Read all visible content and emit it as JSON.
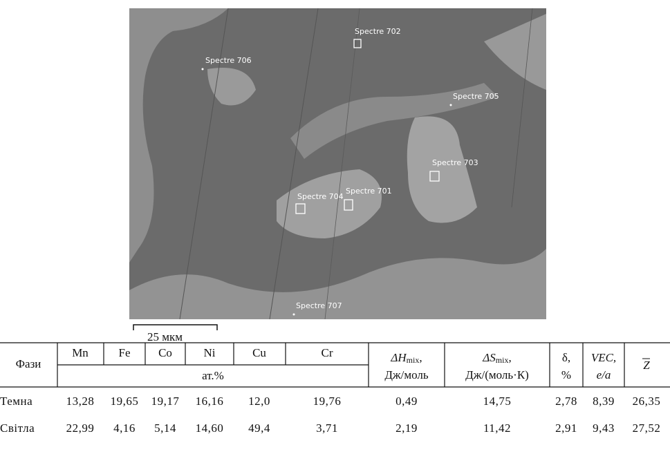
{
  "image": {
    "labels": [
      "Spectre 702",
      "Spectre 706",
      "Spectre 705",
      "Spectre 703",
      "Spectre 704",
      "Spectre 701",
      "Spectre 707"
    ],
    "scale_bar": "25 мкм"
  },
  "table": {
    "header": {
      "phase": "Фази",
      "elements": [
        "Mn",
        "Fe",
        "Co",
        "Ni",
        "Cu",
        "Cr"
      ],
      "unit": "ат.%",
      "dh": {
        "symbol": "ΔH",
        "sub": "mix",
        "sep": ",",
        "unit": "Дж/моль"
      },
      "ds": {
        "symbol": "ΔS",
        "sub": "mix",
        "sep": ",",
        "unit": "Дж/(моль·К)"
      },
      "delta": {
        "symbol": "δ,",
        "unit": "%"
      },
      "vec": {
        "symbol": "VEC,",
        "unit": "e/a"
      },
      "z": "Z"
    },
    "rows": [
      [
        "Темна",
        "13,28",
        "19,65",
        "19,17",
        "16,16",
        "12,0",
        "19,76",
        "0,49",
        "14,75",
        "2,78",
        "8,39",
        "26,35"
      ],
      [
        "Світла",
        "22,99",
        "4,16",
        "5,14",
        "14,60",
        "49,4",
        "3,71",
        "2,19",
        "11,42",
        "2,91",
        "9,43",
        "27,52"
      ]
    ]
  }
}
